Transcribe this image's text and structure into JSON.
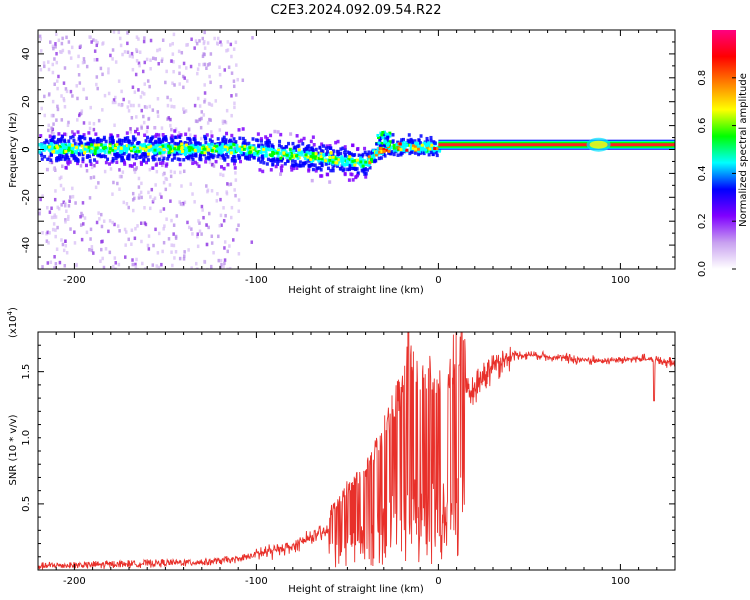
{
  "title": "C2E3.2024.092.09.54.R22",
  "chart_data": [
    {
      "type": "heatmap",
      "name": "spectrogram",
      "xlabel": "Height of straight line (km)",
      "ylabel": "Frequency (Hz)",
      "xlim": [
        -220,
        130
      ],
      "ylim": [
        -50,
        50
      ],
      "xticks": [
        -200,
        -100,
        0,
        100
      ],
      "yticks": [
        -40,
        -20,
        0,
        20,
        40
      ],
      "colorbar": {
        "label": "Normalized spectral amplitude",
        "range": [
          0,
          1
        ],
        "ticks": [
          0.0,
          0.2,
          0.4,
          0.6,
          0.8
        ],
        "colormap": [
          "#ffffff",
          "#c8a0f0",
          "#8000ff",
          "#0000ff",
          "#00ffff",
          "#00ff00",
          "#ffff00",
          "#ff8000",
          "#ff0000",
          "#ff0080"
        ]
      },
      "features": {
        "scatter_region_x": [
          -220,
          -110
        ],
        "main_band_center_hz": 1,
        "steady_tone_x": [
          0,
          130
        ],
        "steady_tone_freq_hz": 2
      }
    },
    {
      "type": "line",
      "name": "snr",
      "xlabel": "Height of straight line (km)",
      "ylabel": "SNR (10 * v/v)",
      "multiplier": "(x10",
      "multiplier_exp": "4",
      "multiplier_close": ")",
      "xlim": [
        -220,
        130
      ],
      "ylim": [
        0,
        1.8
      ],
      "xticks": [
        -200,
        -100,
        0,
        100
      ],
      "yticks": [
        0.5,
        1.0,
        1.5
      ],
      "ytick_labels": [
        "0.5",
        "1.0",
        "1.5"
      ],
      "color": "#e8302a",
      "series": [
        {
          "name": "SNR envelope",
          "x": [
            -220,
            -160,
            -130,
            -110,
            -100,
            -80,
            -60,
            -50,
            -40,
            -30,
            -20,
            -15,
            -10,
            -5,
            0,
            5,
            10,
            20,
            30,
            40,
            50,
            70,
            90,
            110,
            130
          ],
          "y": [
            0.03,
            0.05,
            0.06,
            0.08,
            0.12,
            0.18,
            0.3,
            0.45,
            0.55,
            0.75,
            1.0,
            1.15,
            1.05,
            1.1,
            1.05,
            1.0,
            1.2,
            1.4,
            1.55,
            1.62,
            1.63,
            1.6,
            1.58,
            1.6,
            1.57
          ]
        }
      ]
    }
  ]
}
